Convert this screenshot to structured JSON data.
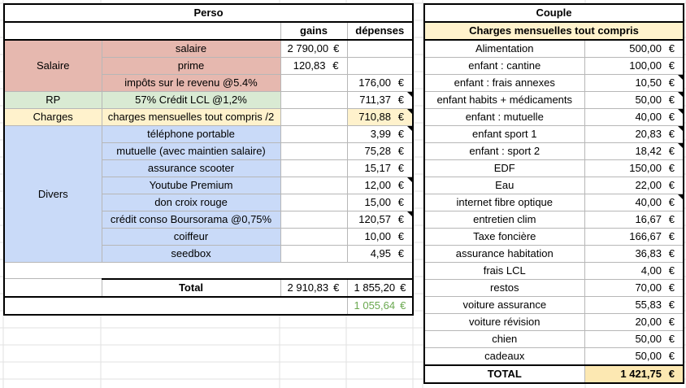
{
  "perso": {
    "title": "Perso",
    "col_gains": "gains",
    "col_depenses": "dépenses",
    "groups": {
      "salaire": "Salaire",
      "rp": "RP",
      "charges": "Charges",
      "divers": "Divers"
    },
    "rows": [
      {
        "label": "salaire",
        "gain": "2 790,00",
        "depense": ""
      },
      {
        "label": "prime",
        "gain": "120,83",
        "depense": ""
      },
      {
        "label": "impôts sur le revenu @5.4%",
        "gain": "",
        "depense": "176,00"
      },
      {
        "label": "57% Crédit LCL @1,2%",
        "gain": "",
        "depense": "711,37"
      },
      {
        "label": "charges mensuelles tout compris /2",
        "gain": "",
        "depense": "710,88"
      },
      {
        "label": "téléphone portable",
        "gain": "",
        "depense": "3,99"
      },
      {
        "label": "mutuelle (avec maintien salaire)",
        "gain": "",
        "depense": "75,28"
      },
      {
        "label": "assurance scooter",
        "gain": "",
        "depense": "15,17"
      },
      {
        "label": "Youtube Premium",
        "gain": "",
        "depense": "12,00"
      },
      {
        "label": "don croix rouge",
        "gain": "",
        "depense": "15,00"
      },
      {
        "label": "crédit conso Boursorama @0,75%",
        "gain": "",
        "depense": "120,57"
      },
      {
        "label": "coiffeur",
        "gain": "",
        "depense": "10,00"
      },
      {
        "label": "seedbox",
        "gain": "",
        "depense": "4,95"
      }
    ],
    "total_label": "Total",
    "total_gains": "2 910,83",
    "total_depenses": "1 855,20",
    "balance": "1 055,64",
    "currency": "€"
  },
  "couple": {
    "title": "Couple",
    "subtitle": "Charges mensuelles tout compris",
    "rows": [
      {
        "label": "Alimentation",
        "value": "500,00"
      },
      {
        "label": "enfant : cantine",
        "value": "100,00"
      },
      {
        "label": "enfant : frais annexes",
        "value": "10,50"
      },
      {
        "label": "enfant habits + médicaments",
        "value": "50,00"
      },
      {
        "label": "enfant : mutuelle",
        "value": "40,00"
      },
      {
        "label": "enfant sport 1",
        "value": "20,83"
      },
      {
        "label": "enfant : sport 2",
        "value": "18,42"
      },
      {
        "label": "EDF",
        "value": "150,00"
      },
      {
        "label": "Eau",
        "value": "22,00"
      },
      {
        "label": "internet fibre optique",
        "value": "40,00"
      },
      {
        "label": "entretien clim",
        "value": "16,67"
      },
      {
        "label": "Taxe foncière",
        "value": "166,67"
      },
      {
        "label": "assurance habitation",
        "value": "36,83"
      },
      {
        "label": "frais LCL",
        "value": "4,00"
      },
      {
        "label": "restos",
        "value": "70,00"
      },
      {
        "label": "voiture assurance",
        "value": "55,83"
      },
      {
        "label": "voiture révision",
        "value": "20,00"
      },
      {
        "label": "chien",
        "value": "50,00"
      },
      {
        "label": "cadeaux",
        "value": "50,00"
      }
    ],
    "total_label": "TOTAL",
    "total_value": "1 421,75",
    "currency": "€"
  }
}
